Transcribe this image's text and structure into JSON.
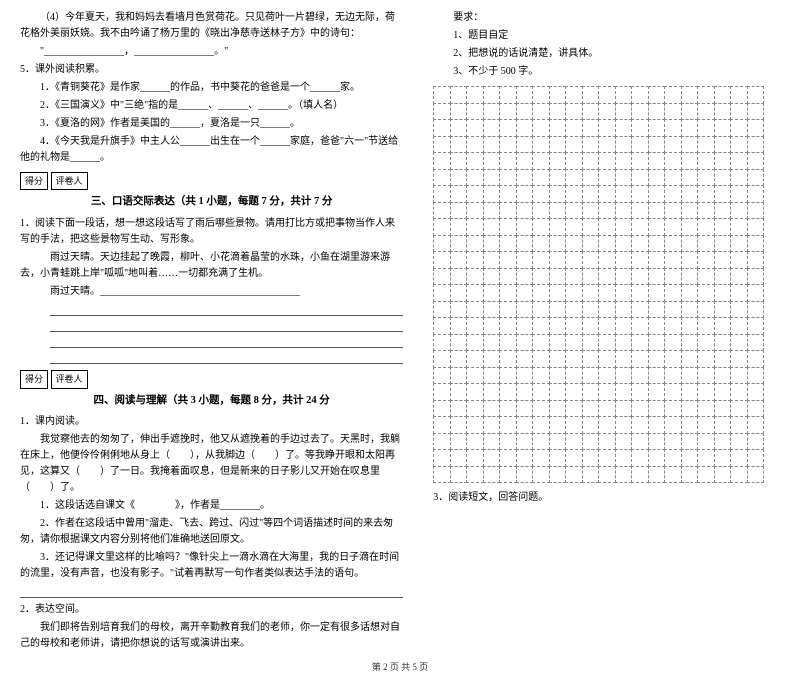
{
  "left": {
    "p1": "（4）今年夏天，我和妈妈去看墙月色赏荷花。只见荷叶一片碧绿，无边无际，荷花格外美丽妖娆。我不由吟诵了杨万里的《晓出净慈寺送林子方》中的诗句：",
    "p1_quote": "\"________________，________________。\"",
    "q5": "5．课外阅读积累。",
    "q5_1": "1．《青铜葵花》是作家______的作品，书中葵花的爸爸是一个______家。",
    "q5_2": "2．《三国演义》中\"三绝\"指的是______、______、______。（填人名）",
    "q5_3": "3．《夏洛的网》作者是美国的______，夏洛是一只______。",
    "q5_4": "4．《今天我是升旗手》中主人公______出生在一个______家庭，爸爸\"六一\"节送给他的礼物是______。",
    "score_label_1": "得分",
    "score_label_2": "评卷人",
    "section3": "三、口语交际表达（共 1 小题，每题 7 分，共计 7 分",
    "s3_q1a": "1．阅读下面一段话，想一想这段话写了雨后哪些景物。请用打比方或把事物当作人来写的手法，把这些景物写生动、写形象。",
    "s3_p1": "雨过天晴。天边挂起了晚霞，柳叶、小花滴着晶莹的水珠，小鱼在湖里游来游去，小青蛙跳上岸\"呱呱\"地叫着……一切都充满了生机。",
    "s3_p2": "雨过天晴。________________________________________",
    "section4": "四、阅读与理解（共 3 小题，每题 8 分，共计 24 分",
    "s4_q1": "1．课内阅读。",
    "s4_p1": "我觉察他去的匆匆了，伸出手遮挽时，他又从遮挽着的手边过去了。天黑时，我躺在床上，他便伶伶俐俐地从身上（　　），从我脚边（　　）了。等我睁开眼和太阳再见，这算又（　　）了一日。我掩着面叹息，但是新来的日子影儿又开始在叹息里（　　）了。",
    "s4_l1": "1．这段话选自课文《　　　　》，作者是________。",
    "s4_l2": "2．作者在这段话中曾用\"溜走、飞去、跨过、闪过\"等四个词语描述时间的来去匆匆，请你根据课文内容分别将他们准确地送回原文。",
    "s4_l3": "3．还记得课文里这样的比喻吗？\"像针尖上一滴水滴在大海里，我的日子滴在时间的流里，没有声音，也没有影子。\"试着再默写一句作者类似表达手法的语句。",
    "s4_q2": "2．表达空间。",
    "s4_p2": "我们即将告别培育我们的母校，离开辛勤教育我们的老师，你一定有很多话想对自己的母校和老师讲，请把你想说的话写或演讲出来。"
  },
  "right": {
    "req_title": "要求：",
    "req_1": "1、题目自定",
    "req_2": "2、把想说的话说清楚，讲具体。",
    "req_3": "3、不少于 500 字。",
    "s4_q3": "3．阅读短文，回答问题。"
  },
  "grid": {
    "rows": 24,
    "cols": 20
  },
  "footer": "第 2 页 共 5 页"
}
